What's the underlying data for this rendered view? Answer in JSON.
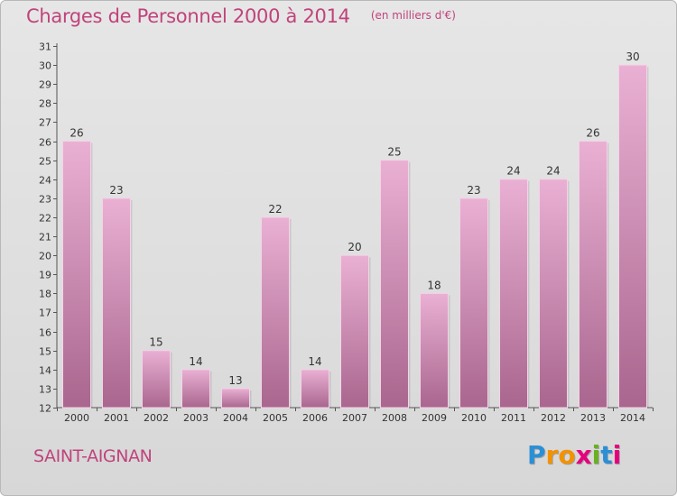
{
  "title": "Charges de Personnel 2000 à 2014",
  "subtitle": "(en milliers d'€)",
  "commune": "SAINT-AIGNAN",
  "logo": {
    "letters": [
      "P",
      "r",
      "o",
      "x",
      "i",
      "t",
      "i"
    ],
    "colors": [
      "#2b8fd6",
      "#f39200",
      "#f39200",
      "#e5007e",
      "#6ab023",
      "#2b8fd6",
      "#e5007e"
    ]
  },
  "colors": {
    "accent": "#c0437c",
    "bar_top": "#eab0d4",
    "bar_bottom": "#a9668e",
    "axis": "#555555"
  },
  "chart_data": {
    "type": "bar",
    "title": "Charges de Personnel 2000 à 2014",
    "subtitle": "(en milliers d'€)",
    "categories": [
      "2000",
      "2001",
      "2002",
      "2003",
      "2004",
      "2005",
      "2006",
      "2007",
      "2008",
      "2009",
      "2010",
      "2011",
      "2012",
      "2013",
      "2014"
    ],
    "values": [
      26,
      23,
      15,
      14,
      13,
      22,
      14,
      20,
      25,
      18,
      23,
      24,
      24,
      26,
      30
    ],
    "ylim": [
      12,
      31
    ],
    "yticks": [
      12,
      13,
      14,
      15,
      16,
      17,
      18,
      19,
      20,
      21,
      22,
      23,
      24,
      25,
      26,
      27,
      28,
      29,
      30,
      31
    ],
    "grid": false,
    "data_labels": true
  }
}
